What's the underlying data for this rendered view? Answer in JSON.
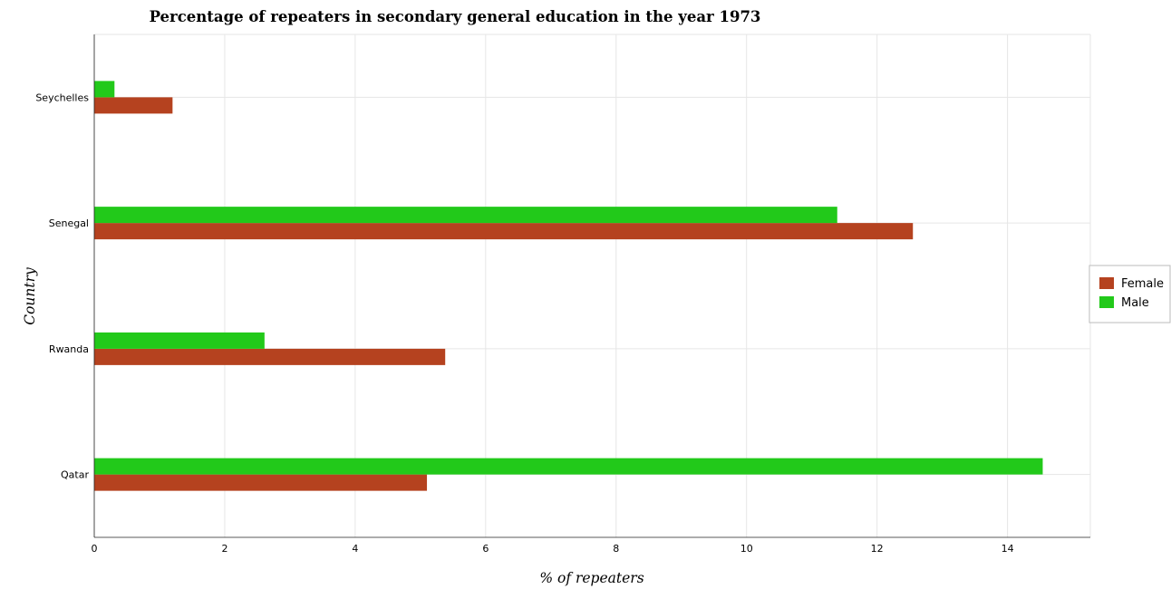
{
  "chart_data": {
    "type": "bar",
    "orientation": "horizontal",
    "title": "Percentage of repeaters in secondary general education in the year 1973",
    "xlabel": "% of repeaters",
    "ylabel": "Country",
    "categories": [
      "Qatar",
      "Rwanda",
      "Senegal",
      "Seychelles"
    ],
    "series": [
      {
        "name": "Female",
        "color": "#b5421f",
        "values": [
          5.1,
          5.38,
          12.55,
          1.2
        ]
      },
      {
        "name": "Male",
        "color": "#22c91a",
        "values": [
          14.54,
          2.61,
          11.39,
          0.31
        ]
      }
    ],
    "xlim": [
      0,
      15.27
    ],
    "xticks": [
      0,
      2,
      4,
      6,
      8,
      10,
      12,
      14
    ],
    "grid": true,
    "legend_position": "right"
  }
}
